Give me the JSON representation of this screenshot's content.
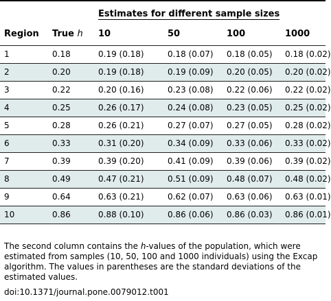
{
  "table": {
    "group_header": "Estimates for different sample sizes",
    "columns": {
      "region": "Region",
      "true_prefix": "True ",
      "true_h": "h",
      "n10": "10",
      "n50": "50",
      "n100": "100",
      "n1000": "1000"
    },
    "rows": [
      {
        "region": "1",
        "true_h": "0.18",
        "n10": "0.19 (0.18)",
        "n50": "0.18 (0.07)",
        "n100": "0.18 (0.05)",
        "n1000": "0.18 (0.02)"
      },
      {
        "region": "2",
        "true_h": "0.20",
        "n10": "0.19 (0.18)",
        "n50": "0.19 (0.09)",
        "n100": "0.20 (0.05)",
        "n1000": "0.20 (0.02)"
      },
      {
        "region": "3",
        "true_h": "0.22",
        "n10": "0.20 (0.16)",
        "n50": "0.23 (0.08)",
        "n100": "0.22 (0.06)",
        "n1000": "0.22 (0.02)"
      },
      {
        "region": "4",
        "true_h": "0.25",
        "n10": "0.26 (0.17)",
        "n50": "0.24 (0.08)",
        "n100": "0.23 (0.05)",
        "n1000": "0.25 (0.02)"
      },
      {
        "region": "5",
        "true_h": "0.28",
        "n10": "0.26 (0.21)",
        "n50": "0.27 (0.07)",
        "n100": "0.27 (0.05)",
        "n1000": "0.28 (0.02)"
      },
      {
        "region": "6",
        "true_h": "0.33",
        "n10": "0.31 (0.20)",
        "n50": "0.34 (0.09)",
        "n100": "0.33 (0.06)",
        "n1000": "0.33 (0.02)"
      },
      {
        "region": "7",
        "true_h": "0.39",
        "n10": "0.39 (0.20)",
        "n50": "0.41 (0.09)",
        "n100": "0.39 (0.06)",
        "n1000": "0.39 (0.02)"
      },
      {
        "region": "8",
        "true_h": "0.49",
        "n10": "0.47 (0.21)",
        "n50": "0.51 (0.09)",
        "n100": "0.48 (0.07)",
        "n1000": "0.48 (0.02)"
      },
      {
        "region": "9",
        "true_h": "0.64",
        "n10": "0.63 (0.21)",
        "n50": "0.62 (0.07)",
        "n100": "0.63 (0.06)",
        "n1000": "0.63 (0.01)"
      },
      {
        "region": "10",
        "true_h": "0.86",
        "n10": "0.88 (0.10)",
        "n50": "0.86 (0.06)",
        "n100": "0.86 (0.03)",
        "n1000": "0.86 (0.01)"
      }
    ]
  },
  "footnote": {
    "part1": "The second column contains the ",
    "h": "h",
    "part2": "-values of the population, which were estimated from samples (10, 50, 100 and 1000 individuals) using the Excap algorithm. The values in parentheses are the standard deviations of the estimated values."
  },
  "doi": "doi:10.1371/journal.pone.0079012.t001",
  "colors": {
    "even_row_bg": "#e0ebec",
    "text": "#000000"
  }
}
